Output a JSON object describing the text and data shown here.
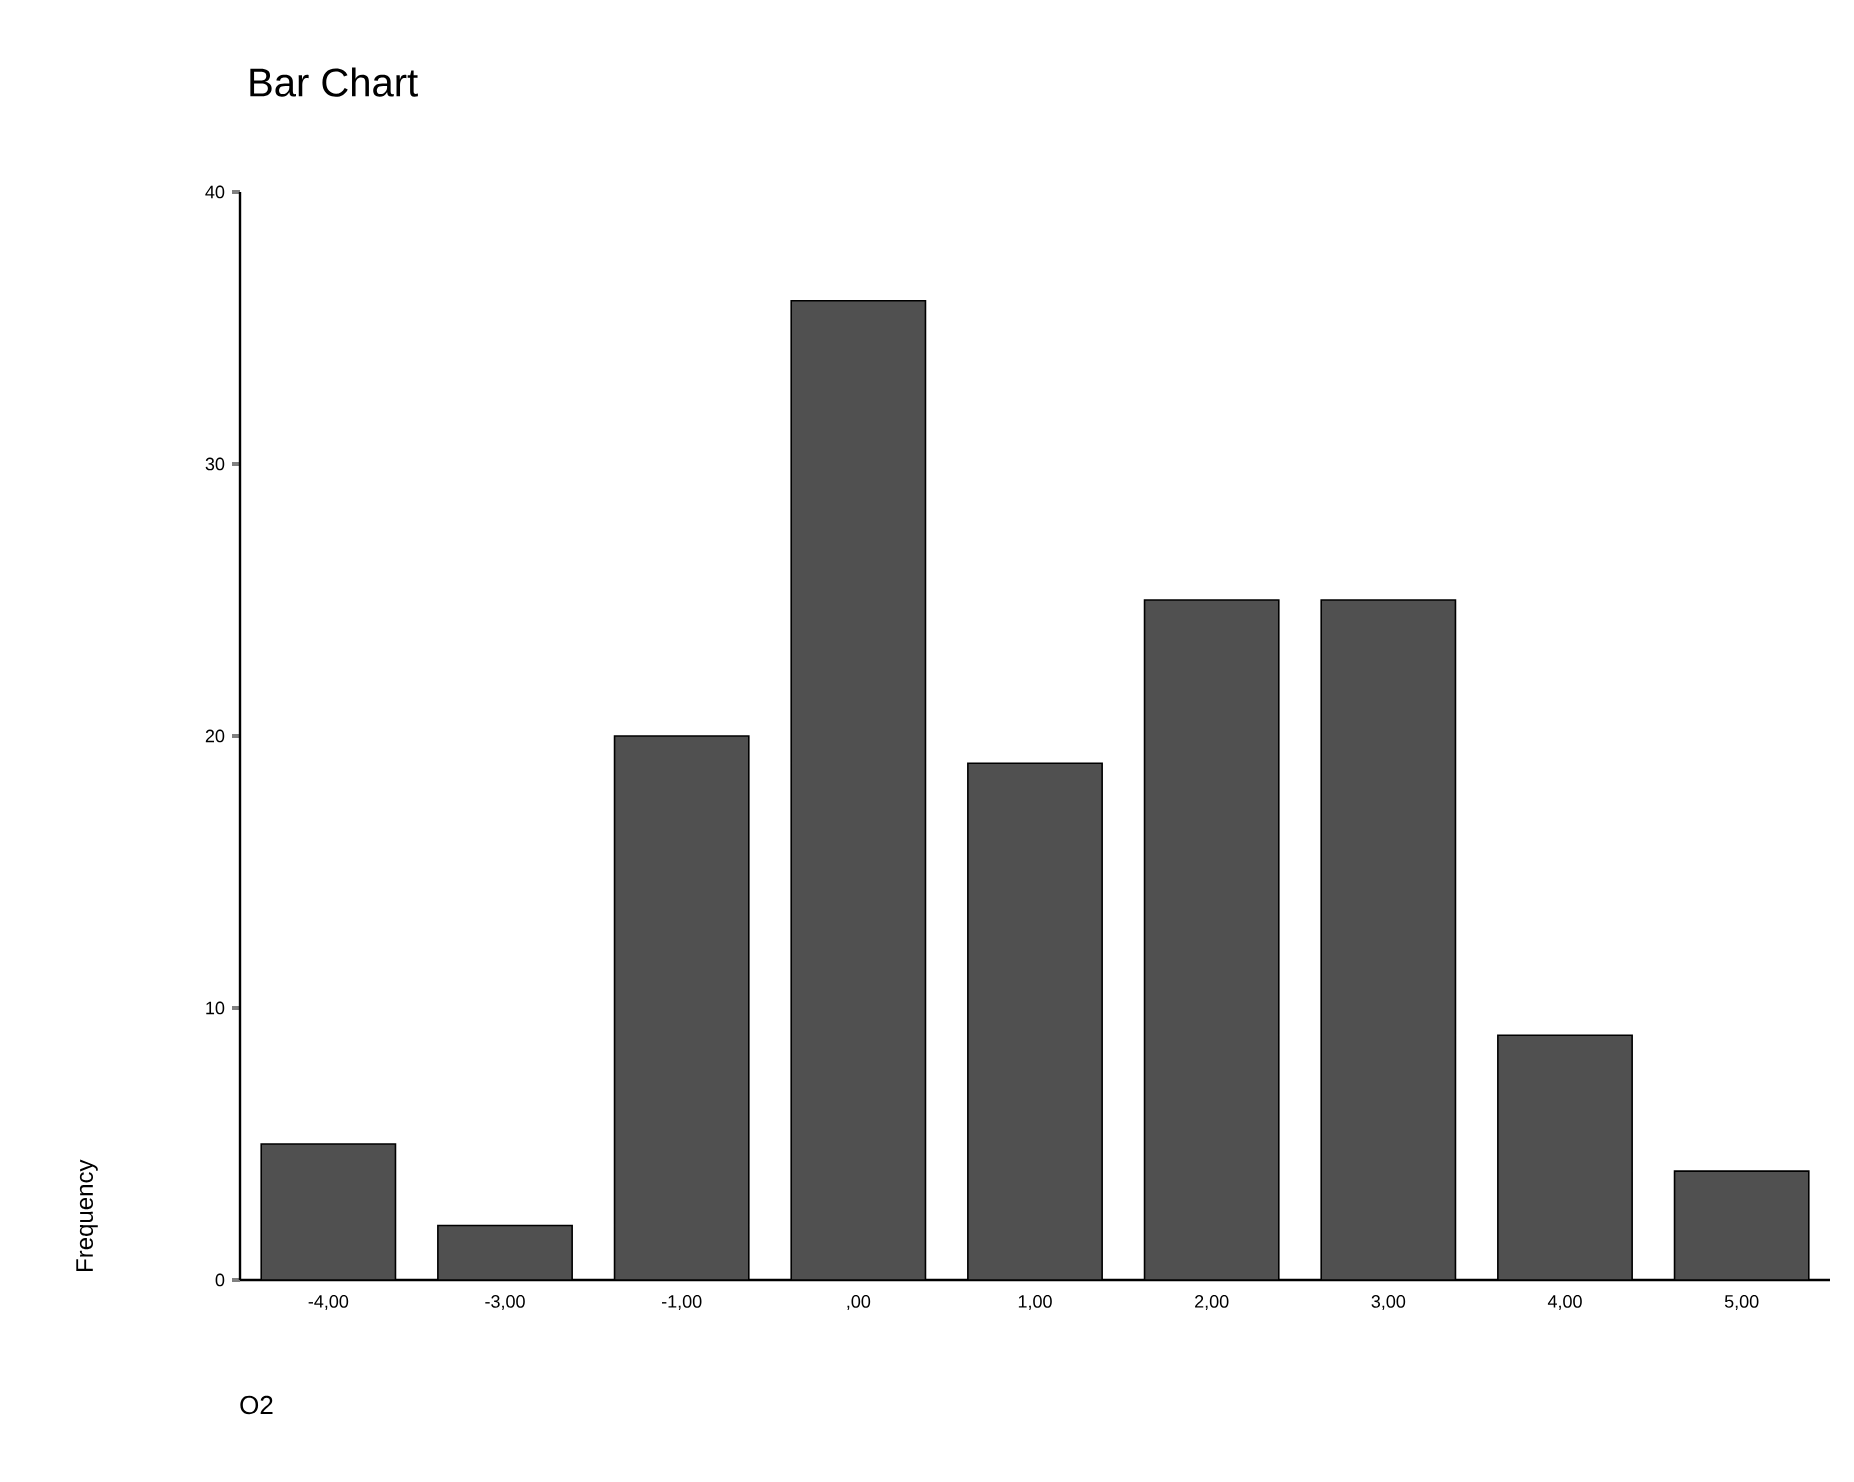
{
  "chart_data": {
    "type": "bar",
    "title": "Bar Chart",
    "xlabel": "O2",
    "ylabel": "Frequency",
    "categories": [
      "-4,00",
      "-3,00",
      "-1,00",
      ",00",
      "1,00",
      "2,00",
      "3,00",
      "4,00",
      "5,00"
    ],
    "values": [
      5,
      2,
      20,
      36,
      19,
      25,
      25,
      9,
      4
    ],
    "color": "#505050",
    "ylim": [
      0,
      40
    ],
    "yticks": [
      0,
      10,
      20,
      30,
      40
    ],
    "grid": false
  }
}
